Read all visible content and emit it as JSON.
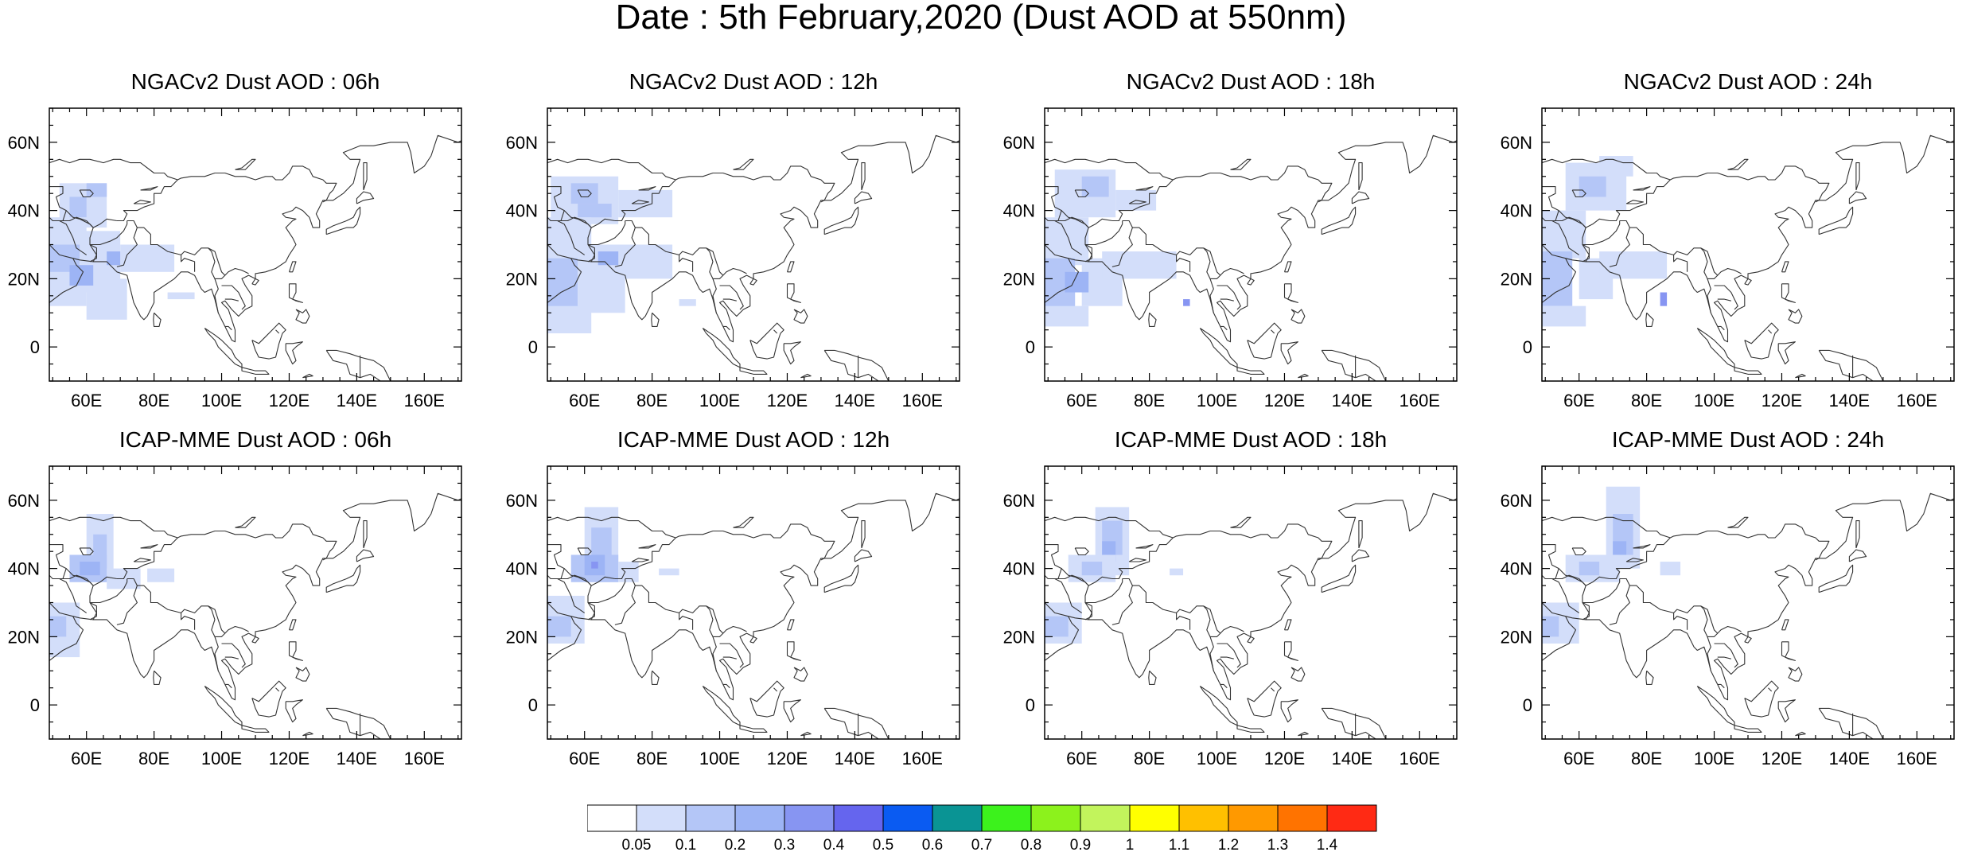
{
  "title": "Date : 5th February,2020 (Dust AOD at 550nm)",
  "map_extent": {
    "lon_min": 49,
    "lon_max": 171,
    "lat_min": -10,
    "lat_max": 70
  },
  "lon_ticks": [
    "60E",
    "80E",
    "100E",
    "120E",
    "140E",
    "160E"
  ],
  "lat_ticks": [
    "0",
    "20N",
    "40N",
    "60N"
  ],
  "panels": [
    {
      "title": "NGACv2 Dust AOD : 06h",
      "model": "NGACv2",
      "hour": "06h",
      "dust": [
        {
          "lon": [
            52,
            66
          ],
          "lat": [
            35,
            48
          ],
          "level": 1
        },
        {
          "lon": [
            55,
            60
          ],
          "lat": [
            38,
            44
          ],
          "level": 2
        },
        {
          "lon": [
            60,
            66
          ],
          "lat": [
            44,
            48
          ],
          "level": 2
        },
        {
          "lon": [
            49,
            60
          ],
          "lat": [
            26,
            38
          ],
          "level": 1
        },
        {
          "lon": [
            49,
            58
          ],
          "lat": [
            14,
            30
          ],
          "level": 2
        },
        {
          "lon": [
            49,
            60
          ],
          "lat": [
            12,
            22
          ],
          "level": 1
        },
        {
          "lon": [
            58,
            70
          ],
          "lat": [
            16,
            34
          ],
          "level": 1
        },
        {
          "lon": [
            70,
            86
          ],
          "lat": [
            22,
            30
          ],
          "level": 1
        },
        {
          "lon": [
            60,
            72
          ],
          "lat": [
            8,
            20
          ],
          "level": 1
        },
        {
          "lon": [
            55,
            62
          ],
          "lat": [
            18,
            24
          ],
          "level": 3
        },
        {
          "lon": [
            66,
            70
          ],
          "lat": [
            24,
            28
          ],
          "level": 3
        },
        {
          "lon": [
            84,
            92
          ],
          "lat": [
            14,
            16
          ],
          "level": 1
        }
      ]
    },
    {
      "title": "NGACv2 Dust AOD : 12h",
      "model": "NGACv2",
      "hour": "12h",
      "dust": [
        {
          "lon": [
            50,
            70
          ],
          "lat": [
            36,
            50
          ],
          "level": 1
        },
        {
          "lon": [
            56,
            64
          ],
          "lat": [
            42,
            48
          ],
          "level": 2
        },
        {
          "lon": [
            58,
            68
          ],
          "lat": [
            38,
            42
          ],
          "level": 2
        },
        {
          "lon": [
            70,
            86
          ],
          "lat": [
            38,
            46
          ],
          "level": 1
        },
        {
          "lon": [
            49,
            62
          ],
          "lat": [
            24,
            38
          ],
          "level": 1
        },
        {
          "lon": [
            49,
            58
          ],
          "lat": [
            10,
            26
          ],
          "level": 2
        },
        {
          "lon": [
            49,
            62
          ],
          "lat": [
            4,
            12
          ],
          "level": 1
        },
        {
          "lon": [
            58,
            72
          ],
          "lat": [
            10,
            30
          ],
          "level": 1
        },
        {
          "lon": [
            66,
            86
          ],
          "lat": [
            20,
            30
          ],
          "level": 1
        },
        {
          "lon": [
            64,
            70
          ],
          "lat": [
            24,
            28
          ],
          "level": 3
        },
        {
          "lon": [
            88,
            93
          ],
          "lat": [
            12,
            14
          ],
          "level": 1
        }
      ]
    },
    {
      "title": "NGACv2 Dust AOD : 18h",
      "model": "NGACv2",
      "hour": "18h",
      "dust": [
        {
          "lon": [
            52,
            70
          ],
          "lat": [
            38,
            52
          ],
          "level": 1
        },
        {
          "lon": [
            60,
            68
          ],
          "lat": [
            44,
            50
          ],
          "level": 2
        },
        {
          "lon": [
            70,
            82
          ],
          "lat": [
            40,
            46
          ],
          "level": 1
        },
        {
          "lon": [
            49,
            62
          ],
          "lat": [
            24,
            38
          ],
          "level": 1
        },
        {
          "lon": [
            49,
            58
          ],
          "lat": [
            10,
            26
          ],
          "level": 2
        },
        {
          "lon": [
            49,
            62
          ],
          "lat": [
            6,
            12
          ],
          "level": 1
        },
        {
          "lon": [
            60,
            72
          ],
          "lat": [
            12,
            26
          ],
          "level": 1
        },
        {
          "lon": [
            66,
            88
          ],
          "lat": [
            20,
            28
          ],
          "level": 1
        },
        {
          "lon": [
            55,
            62
          ],
          "lat": [
            16,
            22
          ],
          "level": 3
        },
        {
          "lon": [
            90,
            92
          ],
          "lat": [
            12,
            14
          ],
          "level": 4
        }
      ]
    },
    {
      "title": "NGACv2 Dust AOD : 24h",
      "model": "NGACv2",
      "hour": "24h",
      "dust": [
        {
          "lon": [
            56,
            74
          ],
          "lat": [
            40,
            54
          ],
          "level": 1
        },
        {
          "lon": [
            66,
            76
          ],
          "lat": [
            50,
            56
          ],
          "level": 1
        },
        {
          "lon": [
            60,
            68
          ],
          "lat": [
            44,
            50
          ],
          "level": 2
        },
        {
          "lon": [
            49,
            62
          ],
          "lat": [
            26,
            40
          ],
          "level": 1
        },
        {
          "lon": [
            49,
            58
          ],
          "lat": [
            12,
            28
          ],
          "level": 2
        },
        {
          "lon": [
            49,
            62
          ],
          "lat": [
            6,
            12
          ],
          "level": 1
        },
        {
          "lon": [
            60,
            70
          ],
          "lat": [
            14,
            26
          ],
          "level": 1
        },
        {
          "lon": [
            66,
            86
          ],
          "lat": [
            20,
            28
          ],
          "level": 1
        },
        {
          "lon": [
            84,
            86
          ],
          "lat": [
            12,
            16
          ],
          "level": 4
        }
      ]
    },
    {
      "title": "ICAP-MME Dust AOD : 06h",
      "model": "ICAP-MME",
      "hour": "06h",
      "dust": [
        {
          "lon": [
            60,
            68
          ],
          "lat": [
            36,
            56
          ],
          "level": 1
        },
        {
          "lon": [
            62,
            66
          ],
          "lat": [
            40,
            50
          ],
          "level": 2
        },
        {
          "lon": [
            55,
            66
          ],
          "lat": [
            36,
            44
          ],
          "level": 2
        },
        {
          "lon": [
            58,
            64
          ],
          "lat": [
            38,
            42
          ],
          "level": 3
        },
        {
          "lon": [
            66,
            76
          ],
          "lat": [
            34,
            40
          ],
          "level": 1
        },
        {
          "lon": [
            78,
            86
          ],
          "lat": [
            36,
            40
          ],
          "level": 1
        },
        {
          "lon": [
            49,
            58
          ],
          "lat": [
            14,
            30
          ],
          "level": 1
        },
        {
          "lon": [
            49,
            54
          ],
          "lat": [
            20,
            26
          ],
          "level": 2
        }
      ]
    },
    {
      "title": "ICAP-MME Dust AOD : 12h",
      "model": "ICAP-MME",
      "hour": "12h",
      "dust": [
        {
          "lon": [
            60,
            70
          ],
          "lat": [
            36,
            58
          ],
          "level": 1
        },
        {
          "lon": [
            62,
            68
          ],
          "lat": [
            42,
            52
          ],
          "level": 2
        },
        {
          "lon": [
            56,
            70
          ],
          "lat": [
            36,
            44
          ],
          "level": 2
        },
        {
          "lon": [
            60,
            66
          ],
          "lat": [
            38,
            44
          ],
          "level": 3
        },
        {
          "lon": [
            62,
            64
          ],
          "lat": [
            40,
            42
          ],
          "level": 4
        },
        {
          "lon": [
            70,
            76
          ],
          "lat": [
            36,
            42
          ],
          "level": 1
        },
        {
          "lon": [
            82,
            88
          ],
          "lat": [
            38,
            40
          ],
          "level": 1
        },
        {
          "lon": [
            49,
            60
          ],
          "lat": [
            18,
            32
          ],
          "level": 1
        },
        {
          "lon": [
            49,
            56
          ],
          "lat": [
            20,
            26
          ],
          "level": 2
        }
      ]
    },
    {
      "title": "ICAP-MME Dust AOD : 18h",
      "model": "ICAP-MME",
      "hour": "18h",
      "dust": [
        {
          "lon": [
            64,
            74
          ],
          "lat": [
            38,
            58
          ],
          "level": 1
        },
        {
          "lon": [
            66,
            72
          ],
          "lat": [
            44,
            54
          ],
          "level": 2
        },
        {
          "lon": [
            66,
            70
          ],
          "lat": [
            42,
            48
          ],
          "level": 3
        },
        {
          "lon": [
            56,
            70
          ],
          "lat": [
            36,
            44
          ],
          "level": 1
        },
        {
          "lon": [
            60,
            66
          ],
          "lat": [
            38,
            42
          ],
          "level": 2
        },
        {
          "lon": [
            86,
            90
          ],
          "lat": [
            38,
            40
          ],
          "level": 1
        },
        {
          "lon": [
            49,
            60
          ],
          "lat": [
            18,
            30
          ],
          "level": 1
        },
        {
          "lon": [
            49,
            56
          ],
          "lat": [
            20,
            26
          ],
          "level": 2
        }
      ]
    },
    {
      "title": "ICAP-MME Dust AOD : 24h",
      "model": "ICAP-MME",
      "hour": "24h",
      "dust": [
        {
          "lon": [
            68,
            78
          ],
          "lat": [
            40,
            64
          ],
          "level": 1
        },
        {
          "lon": [
            70,
            76
          ],
          "lat": [
            44,
            56
          ],
          "level": 2
        },
        {
          "lon": [
            70,
            74
          ],
          "lat": [
            44,
            48
          ],
          "level": 3
        },
        {
          "lon": [
            56,
            72
          ],
          "lat": [
            36,
            44
          ],
          "level": 1
        },
        {
          "lon": [
            60,
            66
          ],
          "lat": [
            38,
            42
          ],
          "level": 2
        },
        {
          "lon": [
            84,
            90
          ],
          "lat": [
            38,
            42
          ],
          "level": 1
        },
        {
          "lon": [
            49,
            60
          ],
          "lat": [
            18,
            30
          ],
          "level": 1
        },
        {
          "lon": [
            49,
            54
          ],
          "lat": [
            20,
            26
          ],
          "level": 2
        }
      ]
    }
  ],
  "colorbar": {
    "labels": [
      "0.05",
      "0.1",
      "0.2",
      "0.3",
      "0.4",
      "0.5",
      "0.6",
      "0.7",
      "0.8",
      "0.9",
      "1",
      "1.1",
      "1.2",
      "1.3",
      "1.4"
    ],
    "colors": [
      "#ffffff",
      "#d3defa",
      "#b4c6f7",
      "#9db4f5",
      "#8795f2",
      "#6565ee",
      "#0a5bf2",
      "#0a9494",
      "#3cf21c",
      "#8cf21c",
      "#c2f45c",
      "#ffff00",
      "#ffc000",
      "#ff9900",
      "#ff7300",
      "#ff2a14"
    ]
  }
}
